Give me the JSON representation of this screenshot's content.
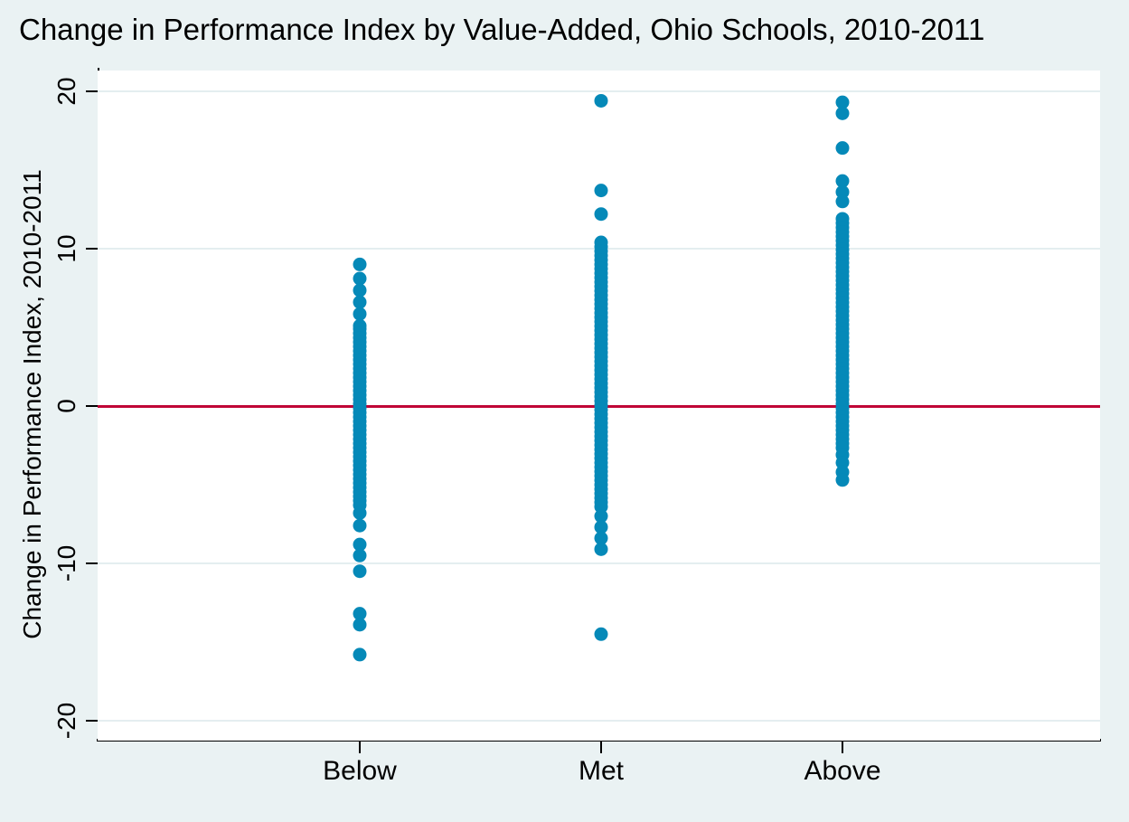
{
  "chart_data": {
    "type": "scatter",
    "title": "Change in Performance Index by Value-Added, Ohio Schools, 2010-2011",
    "ylabel": "Change in Performance Index, 2010-2011",
    "xlabel": "",
    "categories": [
      "Below",
      "Met",
      "Above"
    ],
    "y_ticks": [
      20,
      10,
      0,
      -10,
      -20
    ],
    "y_tick_labels": [
      "20",
      "10",
      "0",
      "-10",
      "-20"
    ],
    "ylim": [
      -21.2,
      21.3
    ],
    "grid": true,
    "legend": "none",
    "reference_line": {
      "y": 0,
      "color": "#c00536"
    },
    "marker_color": "#0589b8",
    "background_color": "#eaf2f3",
    "plot_background_color": "#ffffff",
    "series": [
      {
        "name": "Below",
        "dense_runs": [
          {
            "from": 8.1,
            "to": 4.9,
            "step": 0.75
          },
          {
            "from": 4.9,
            "to": -6.3,
            "step": 0.28
          }
        ],
        "points": [
          9.0,
          -6.8,
          -7.6,
          -8.8,
          -9.5,
          -10.5,
          -13.2,
          -13.9,
          -15.8
        ]
      },
      {
        "name": "Met",
        "dense_runs": [
          {
            "from": 10.4,
            "to": -6.6,
            "step": 0.28
          }
        ],
        "points": [
          19.4,
          13.7,
          12.2,
          -7.0,
          -7.7,
          -8.4,
          -9.1,
          -14.5
        ]
      },
      {
        "name": "Above",
        "dense_runs": [
          {
            "from": 11.9,
            "to": -2.7,
            "step": 0.28
          }
        ],
        "points": [
          19.3,
          18.6,
          16.4,
          14.3,
          13.6,
          13.0,
          -3.1,
          -3.6,
          -4.2,
          -4.7
        ]
      }
    ]
  }
}
